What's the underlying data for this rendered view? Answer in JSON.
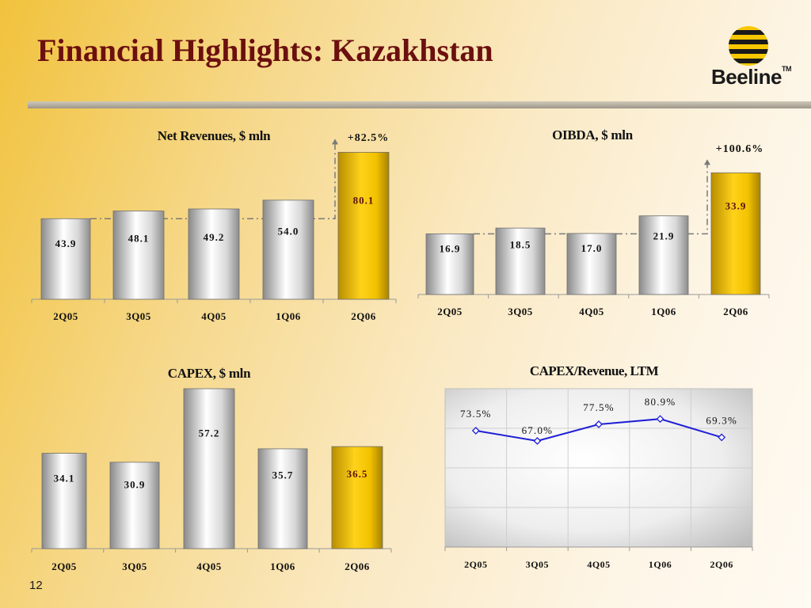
{
  "slide": {
    "title": "Financial Highlights: Kazakhstan",
    "page_number": "12",
    "logo": {
      "text": "Beeline",
      "tm": "TM"
    }
  },
  "colors": {
    "title": "#6b0f0f",
    "highlight_bar": "#f2c200",
    "silver_bar": "#c8c8c8",
    "line": "#1f1fd6",
    "text": "#111111"
  },
  "chart_data": [
    {
      "id": "net-revenues",
      "type": "bar",
      "title": "Net Revenues, $ mln",
      "categories": [
        "2Q05",
        "3Q05",
        "4Q05",
        "1Q06",
        "2Q06"
      ],
      "values": [
        43.9,
        48.1,
        49.2,
        54.0,
        80.1
      ],
      "value_labels": [
        "43.9",
        "48.1",
        "49.2",
        "54.0",
        "80.1"
      ],
      "highlight_index": 4,
      "growth_label": "+82.5%",
      "ylim": [
        0,
        85
      ]
    },
    {
      "id": "oibda",
      "type": "bar",
      "title": "OIBDA, $ mln",
      "categories": [
        "2Q05",
        "3Q05",
        "4Q05",
        "1Q06",
        "2Q06"
      ],
      "values": [
        16.9,
        18.5,
        17.0,
        21.9,
        33.9
      ],
      "value_labels": [
        "16.9",
        "18.5",
        "17.0",
        "21.9",
        "33.9"
      ],
      "highlight_index": 4,
      "growth_label": "+100.6%",
      "ylim": [
        0,
        35.5
      ]
    },
    {
      "id": "capex",
      "type": "bar",
      "title": "CAPEX, $ mln",
      "categories": [
        "2Q05",
        "3Q05",
        "4Q05",
        "1Q06",
        "2Q06"
      ],
      "values": [
        34.1,
        30.9,
        57.2,
        35.7,
        36.5
      ],
      "value_labels": [
        "34.1",
        "30.9",
        "57.2",
        "35.7",
        "36.5"
      ],
      "highlight_index": 4,
      "ylim": [
        0,
        57.2
      ]
    },
    {
      "id": "capex-revenue",
      "type": "line",
      "title": "CAPEX/Revenue, LTM",
      "categories": [
        "2Q05",
        "3Q05",
        "4Q05",
        "1Q06",
        "2Q06"
      ],
      "values": [
        73.5,
        67.0,
        77.5,
        80.9,
        69.3
      ],
      "value_labels": [
        "73.5%",
        "67.0%",
        "77.5%",
        "80.9%",
        "69.3%"
      ],
      "grid": true,
      "ylim": [
        0,
        100
      ]
    }
  ]
}
